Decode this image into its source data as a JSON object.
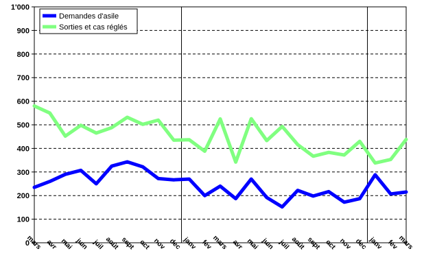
{
  "chart_data": {
    "type": "line",
    "categories": [
      "mars",
      "avr",
      "mai",
      "juin",
      "juil",
      "août",
      "sept",
      "oct",
      "nov",
      "dec",
      "janv",
      "fév",
      "mars",
      "avr",
      "mai",
      "juin",
      "juil",
      "août",
      "sept",
      "oct",
      "nov",
      "dec",
      "janv",
      "fév",
      "mars"
    ],
    "series": [
      {
        "name": "Demandes d'asile",
        "color": "#0000ff",
        "values": [
          235,
          260,
          290,
          307,
          250,
          325,
          343,
          322,
          272,
          267,
          270,
          200,
          240,
          187,
          270,
          192,
          152,
          222,
          198,
          217,
          172,
          187,
          288,
          207,
          215
        ]
      },
      {
        "name": "Sorties et cas réglés",
        "color": "#80ff80",
        "values": [
          580,
          550,
          452,
          498,
          465,
          488,
          532,
          502,
          520,
          435,
          437,
          388,
          525,
          342,
          526,
          433,
          493,
          416,
          367,
          383,
          372,
          430,
          338,
          353,
          438
        ]
      }
    ],
    "ylim": [
      0,
      1000
    ],
    "yticks": [
      {
        "value": 0,
        "label": "0"
      },
      {
        "value": 100,
        "label": "100"
      },
      {
        "value": 200,
        "label": "200"
      },
      {
        "value": 300,
        "label": "300"
      },
      {
        "value": 400,
        "label": "400"
      },
      {
        "value": 500,
        "label": "500"
      },
      {
        "value": 600,
        "label": "600"
      },
      {
        "value": 700,
        "label": "700"
      },
      {
        "value": 800,
        "label": "800"
      },
      {
        "value": 900,
        "label": "900"
      },
      {
        "value": 1000,
        "label": "1'000"
      }
    ],
    "year_separators_after_index": [
      9,
      21
    ],
    "grid": "horizontal-dashed",
    "legend_position": "top-left"
  }
}
